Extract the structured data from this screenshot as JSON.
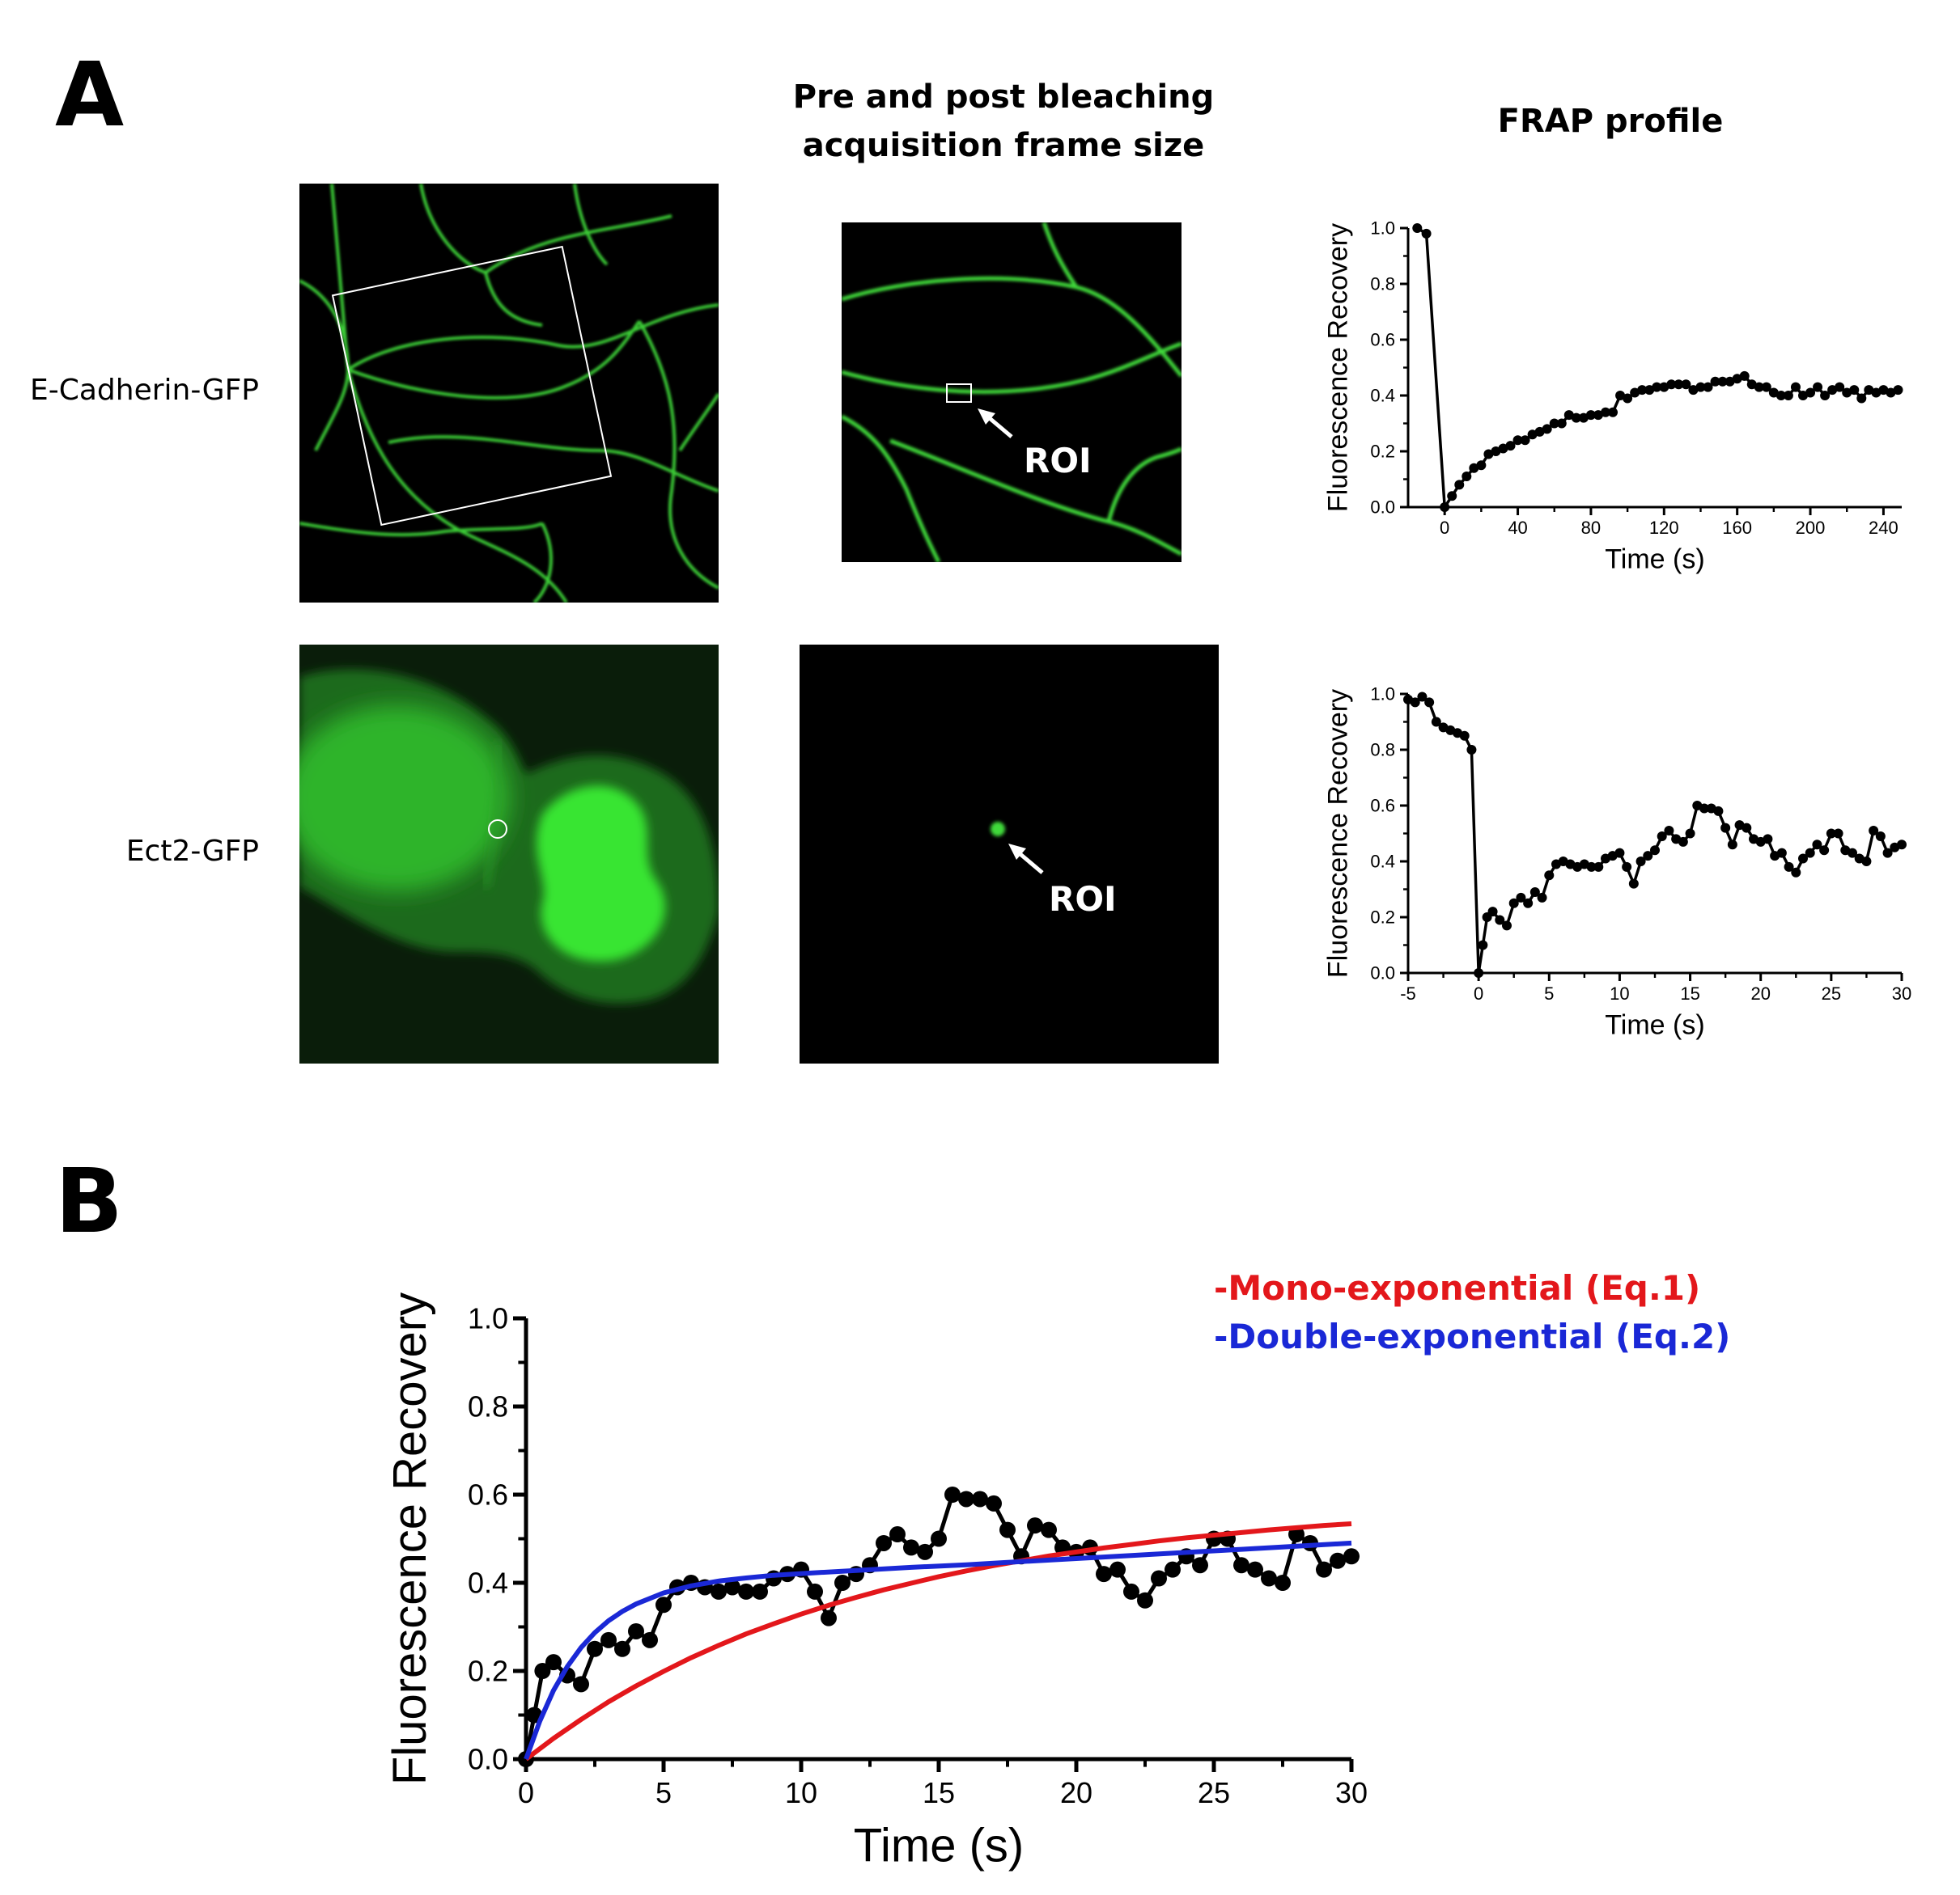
{
  "figure": {
    "panel_a_letter": "A",
    "panel_b_letter": "B",
    "col_title_frame": "Pre and post bleaching acquisition frame size",
    "col_title_frame_line1": "Pre and post bleaching",
    "col_title_frame_line2": "acquisition frame size",
    "col_title_frap": "FRAP profile",
    "row_label_top": "E-Cadherin-GFP",
    "row_label_bottom": "Ect2-GFP",
    "roi_label_top": "ROI",
    "roi_label_bottom": "ROI",
    "legend_mono": "-Mono-exponential (Eq.1)",
    "legend_double": "-Double-exponential (Eq.2)",
    "colors": {
      "mono": "#e3171b",
      "double": "#1a28d6",
      "data": "#000000",
      "gfp": "#3fd93a"
    }
  },
  "chart_data": [
    {
      "id": "frap-ecadherin",
      "type": "line",
      "xlabel": "Time (s)",
      "ylabel": "Fluorescence Recovery",
      "xlim": [
        -20,
        250
      ],
      "ylim": [
        0,
        1.0
      ],
      "xticks": [
        0,
        40,
        80,
        120,
        160,
        200,
        240
      ],
      "yticks": [
        0.0,
        0.2,
        0.4,
        0.6,
        0.8,
        1.0
      ],
      "xtick_labels": [
        "0",
        "40",
        "80",
        "120",
        "160",
        "200",
        "240"
      ],
      "ytick_labels": [
        "0.0",
        "0.2",
        "0.4",
        "0.6",
        "0.8",
        "1.0"
      ],
      "series": [
        {
          "x": [
            -15,
            -10,
            0,
            4,
            8,
            12,
            16,
            20,
            24,
            28,
            32,
            36,
            40,
            44,
            48,
            52,
            56,
            60,
            64,
            68,
            72,
            76,
            80,
            84,
            88,
            92,
            96,
            100,
            104,
            108,
            112,
            116,
            120,
            124,
            128,
            132,
            136,
            140,
            144,
            148,
            152,
            156,
            160,
            164,
            168,
            172,
            176,
            180,
            184,
            188,
            192,
            196,
            200,
            204,
            208,
            212,
            216,
            220,
            224,
            228,
            232,
            236,
            240,
            244,
            248
          ],
          "y": [
            1.0,
            0.98,
            0.0,
            0.04,
            0.08,
            0.11,
            0.14,
            0.15,
            0.19,
            0.2,
            0.21,
            0.22,
            0.24,
            0.24,
            0.26,
            0.27,
            0.28,
            0.3,
            0.3,
            0.33,
            0.32,
            0.32,
            0.33,
            0.33,
            0.34,
            0.34,
            0.4,
            0.39,
            0.41,
            0.42,
            0.42,
            0.43,
            0.43,
            0.44,
            0.44,
            0.44,
            0.42,
            0.43,
            0.43,
            0.45,
            0.45,
            0.45,
            0.46,
            0.47,
            0.44,
            0.43,
            0.43,
            0.41,
            0.4,
            0.4,
            0.43,
            0.4,
            0.41,
            0.43,
            0.4,
            0.42,
            0.43,
            0.41,
            0.42,
            0.39,
            0.42,
            0.41,
            0.42,
            0.41,
            0.42
          ]
        }
      ]
    },
    {
      "id": "frap-ect2",
      "type": "line",
      "xlabel": "Time (s)",
      "ylabel": "Fluorescence Recovery",
      "xlim": [
        -5,
        30
      ],
      "ylim": [
        0,
        1.0
      ],
      "xticks": [
        -5,
        0,
        5,
        10,
        15,
        20,
        25,
        30
      ],
      "yticks": [
        0.0,
        0.2,
        0.4,
        0.6,
        0.8,
        1.0
      ],
      "xtick_labels": [
        "-5",
        "0",
        "5",
        "10",
        "15",
        "20",
        "25",
        "30"
      ],
      "ytick_labels": [
        "0.0",
        "0.2",
        "0.4",
        "0.6",
        "0.8",
        "1.0"
      ],
      "series": [
        {
          "x": [
            -5,
            -4.5,
            -4,
            -3.5,
            -3,
            -2.5,
            -2,
            -1.5,
            -1,
            -0.5,
            0,
            0.3,
            0.6,
            1,
            1.5,
            2,
            2.5,
            3,
            3.5,
            4,
            4.5,
            5,
            5.5,
            6,
            6.5,
            7,
            7.5,
            8,
            8.5,
            9,
            9.5,
            10,
            10.5,
            11,
            11.5,
            12,
            12.5,
            13,
            13.5,
            14,
            14.5,
            15,
            15.5,
            16,
            16.5,
            17,
            17.5,
            18,
            18.5,
            19,
            19.5,
            20,
            20.5,
            21,
            21.5,
            22,
            22.5,
            23,
            23.5,
            24,
            24.5,
            25,
            25.5,
            26,
            26.5,
            27,
            27.5,
            28,
            28.5,
            29,
            29.5,
            30
          ],
          "y": [
            0.98,
            0.97,
            0.99,
            0.97,
            0.9,
            0.88,
            0.87,
            0.86,
            0.85,
            0.8,
            0.0,
            0.1,
            0.2,
            0.22,
            0.19,
            0.17,
            0.25,
            0.27,
            0.25,
            0.29,
            0.27,
            0.35,
            0.39,
            0.4,
            0.39,
            0.38,
            0.39,
            0.38,
            0.38,
            0.41,
            0.42,
            0.43,
            0.38,
            0.32,
            0.4,
            0.42,
            0.44,
            0.49,
            0.51,
            0.48,
            0.47,
            0.5,
            0.6,
            0.59,
            0.59,
            0.58,
            0.52,
            0.46,
            0.53,
            0.52,
            0.48,
            0.47,
            0.48,
            0.42,
            0.43,
            0.38,
            0.36,
            0.41,
            0.43,
            0.46,
            0.44,
            0.5,
            0.5,
            0.44,
            0.43,
            0.41,
            0.4,
            0.51,
            0.49,
            0.43,
            0.45,
            0.46
          ]
        }
      ]
    },
    {
      "id": "frap-fits",
      "type": "line",
      "xlabel": "Time (s)",
      "ylabel": "Fluorescence Recovery",
      "xlim": [
        0,
        30
      ],
      "ylim": [
        0,
        1.0
      ],
      "xticks": [
        0,
        5,
        10,
        15,
        20,
        25,
        30
      ],
      "yticks": [
        0.0,
        0.2,
        0.4,
        0.6,
        0.8,
        1.0
      ],
      "xtick_labels": [
        "0",
        "5",
        "10",
        "15",
        "20",
        "25",
        "30"
      ],
      "ytick_labels": [
        "0.0",
        "0.2",
        "0.4",
        "0.6",
        "0.8",
        "1.0"
      ],
      "series": [
        {
          "name": "data",
          "x": [
            0,
            0.3,
            0.6,
            1,
            1.5,
            2,
            2.5,
            3,
            3.5,
            4,
            4.5,
            5,
            5.5,
            6,
            6.5,
            7,
            7.5,
            8,
            8.5,
            9,
            9.5,
            10,
            10.5,
            11,
            11.5,
            12,
            12.5,
            13,
            13.5,
            14,
            14.5,
            15,
            15.5,
            16,
            16.5,
            17,
            17.5,
            18,
            18.5,
            19,
            19.5,
            20,
            20.5,
            21,
            21.5,
            22,
            22.5,
            23,
            23.5,
            24,
            24.5,
            25,
            25.5,
            26,
            26.5,
            27,
            27.5,
            28,
            28.5,
            29,
            29.5,
            30
          ],
          "y": [
            0.0,
            0.1,
            0.2,
            0.22,
            0.19,
            0.17,
            0.25,
            0.27,
            0.25,
            0.29,
            0.27,
            0.35,
            0.39,
            0.4,
            0.39,
            0.38,
            0.39,
            0.38,
            0.38,
            0.41,
            0.42,
            0.43,
            0.38,
            0.32,
            0.4,
            0.42,
            0.44,
            0.49,
            0.51,
            0.48,
            0.47,
            0.5,
            0.6,
            0.59,
            0.59,
            0.58,
            0.52,
            0.46,
            0.53,
            0.52,
            0.48,
            0.47,
            0.48,
            0.42,
            0.43,
            0.38,
            0.36,
            0.41,
            0.43,
            0.46,
            0.44,
            0.5,
            0.5,
            0.44,
            0.43,
            0.41,
            0.4,
            0.51,
            0.49,
            0.43,
            0.45,
            0.46
          ]
        },
        {
          "name": "Mono-exponential (Eq.1)",
          "x": [
            0,
            1,
            2,
            3,
            4,
            5,
            6,
            7,
            8,
            9,
            10,
            11,
            12,
            13,
            14,
            15,
            16,
            17,
            18,
            19,
            20,
            21,
            22,
            23,
            24,
            25,
            26,
            27,
            28,
            29,
            30
          ],
          "y": [
            0.0,
            0.047,
            0.09,
            0.13,
            0.166,
            0.199,
            0.23,
            0.258,
            0.284,
            0.307,
            0.329,
            0.349,
            0.367,
            0.384,
            0.399,
            0.414,
            0.427,
            0.439,
            0.45,
            0.461,
            0.47,
            0.479,
            0.487,
            0.495,
            0.502,
            0.508,
            0.514,
            0.52,
            0.525,
            0.53,
            0.534
          ]
        },
        {
          "name": "Double-exponential (Eq.2)",
          "x": [
            0,
            0.5,
            1,
            1.5,
            2,
            2.5,
            3,
            3.5,
            4,
            5,
            6,
            7,
            8,
            9,
            10,
            12,
            14,
            16,
            18,
            20,
            22,
            24,
            26,
            28,
            30
          ],
          "y": [
            0.0,
            0.086,
            0.156,
            0.21,
            0.253,
            0.287,
            0.314,
            0.335,
            0.352,
            0.377,
            0.393,
            0.404,
            0.411,
            0.417,
            0.421,
            0.428,
            0.435,
            0.441,
            0.448,
            0.455,
            0.462,
            0.469,
            0.476,
            0.483,
            0.49
          ]
        }
      ]
    }
  ]
}
